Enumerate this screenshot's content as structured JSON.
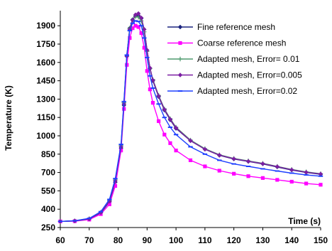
{
  "chart_data": {
    "type": "line",
    "title": "",
    "xlabel": "Time (s)",
    "ylabel": "Temperature (K)",
    "xlim": [
      60,
      150
    ],
    "ylim": [
      250,
      2000
    ],
    "xticks": [
      60,
      70,
      80,
      90,
      100,
      110,
      120,
      130,
      140,
      150
    ],
    "yticks": [
      250,
      400,
      550,
      700,
      850,
      1000,
      1150,
      1300,
      1450,
      1600,
      1750,
      1900
    ],
    "grid": false,
    "legend_position": "top-right",
    "series": [
      {
        "name": "Fine reference mesh",
        "color": "#1a237e",
        "marker": "diamond",
        "x": [
          60,
          65,
          70,
          74,
          77,
          79,
          81,
          82,
          83,
          84,
          85,
          86,
          87,
          88,
          89,
          90,
          91,
          92,
          94,
          96,
          98,
          100,
          105,
          110,
          115,
          120,
          125,
          130,
          135,
          140,
          145,
          150
        ],
        "y": [
          300,
          305,
          320,
          370,
          460,
          620,
          900,
          1250,
          1650,
          1880,
          1950,
          1980,
          1985,
          1960,
          1870,
          1700,
          1550,
          1450,
          1320,
          1210,
          1130,
          1060,
          960,
          890,
          840,
          810,
          790,
          770,
          745,
          720,
          700,
          685
        ]
      },
      {
        "name": "Coarse reference mesh",
        "color": "#ff00ff",
        "marker": "square",
        "x": [
          60,
          65,
          70,
          74,
          77,
          79,
          81,
          82,
          83,
          84,
          85,
          86,
          87,
          88,
          89,
          90,
          91,
          92,
          94,
          96,
          98,
          100,
          105,
          110,
          115,
          120,
          125,
          130,
          135,
          140,
          145,
          150
        ],
        "y": [
          300,
          302,
          315,
          360,
          440,
          590,
          880,
          1220,
          1580,
          1800,
          1880,
          1900,
          1890,
          1840,
          1720,
          1530,
          1380,
          1270,
          1120,
          1010,
          940,
          880,
          800,
          750,
          715,
          690,
          670,
          655,
          640,
          625,
          610,
          600
        ]
      },
      {
        "name": "Adapted mesh, Error= 0.01",
        "color": "#4e9a6e",
        "marker": "plus",
        "x": [
          60,
          65,
          70,
          74,
          77,
          79,
          81,
          82,
          83,
          84,
          85,
          86,
          87,
          88,
          89,
          90,
          91,
          92,
          94,
          96,
          98,
          100,
          105,
          110,
          115,
          120,
          125,
          130,
          135,
          140,
          145,
          150
        ],
        "y": [
          300,
          305,
          322,
          375,
          470,
          640,
          920,
          1270,
          1660,
          1880,
          1950,
          1975,
          1970,
          1940,
          1850,
          1690,
          1550,
          1460,
          1330,
          1220,
          1140,
          1070,
          965,
          895,
          845,
          815,
          795,
          775,
          750,
          725,
          705,
          690
        ]
      },
      {
        "name": "Adapted mesh, Error=0.005",
        "color": "#7b1fa2",
        "marker": "diamond",
        "x": [
          60,
          65,
          70,
          74,
          77,
          79,
          81,
          82,
          83,
          84,
          85,
          86,
          87,
          88,
          89,
          90,
          91,
          92,
          94,
          96,
          98,
          100,
          105,
          110,
          115,
          120,
          125,
          130,
          135,
          140,
          145,
          150
        ],
        "y": [
          300,
          304,
          320,
          372,
          465,
          630,
          910,
          1260,
          1650,
          1870,
          1945,
          1990,
          2000,
          1965,
          1870,
          1700,
          1555,
          1455,
          1325,
          1215,
          1135,
          1065,
          960,
          890,
          842,
          812,
          792,
          772,
          748,
          722,
          702,
          688
        ]
      },
      {
        "name": "Adapted mesh, Error=0.02",
        "color": "#1e40ff",
        "marker": "dash",
        "x": [
          60,
          65,
          70,
          74,
          77,
          79,
          81,
          82,
          83,
          84,
          85,
          86,
          87,
          88,
          89,
          90,
          91,
          92,
          94,
          96,
          98,
          100,
          105,
          110,
          115,
          120,
          125,
          130,
          135,
          140,
          145,
          150
        ],
        "y": [
          300,
          305,
          325,
          380,
          480,
          650,
          930,
          1280,
          1660,
          1860,
          1920,
          1940,
          1935,
          1900,
          1800,
          1640,
          1490,
          1390,
          1260,
          1150,
          1070,
          1010,
          910,
          850,
          800,
          770,
          750,
          730,
          712,
          695,
          680,
          670
        ]
      }
    ]
  }
}
